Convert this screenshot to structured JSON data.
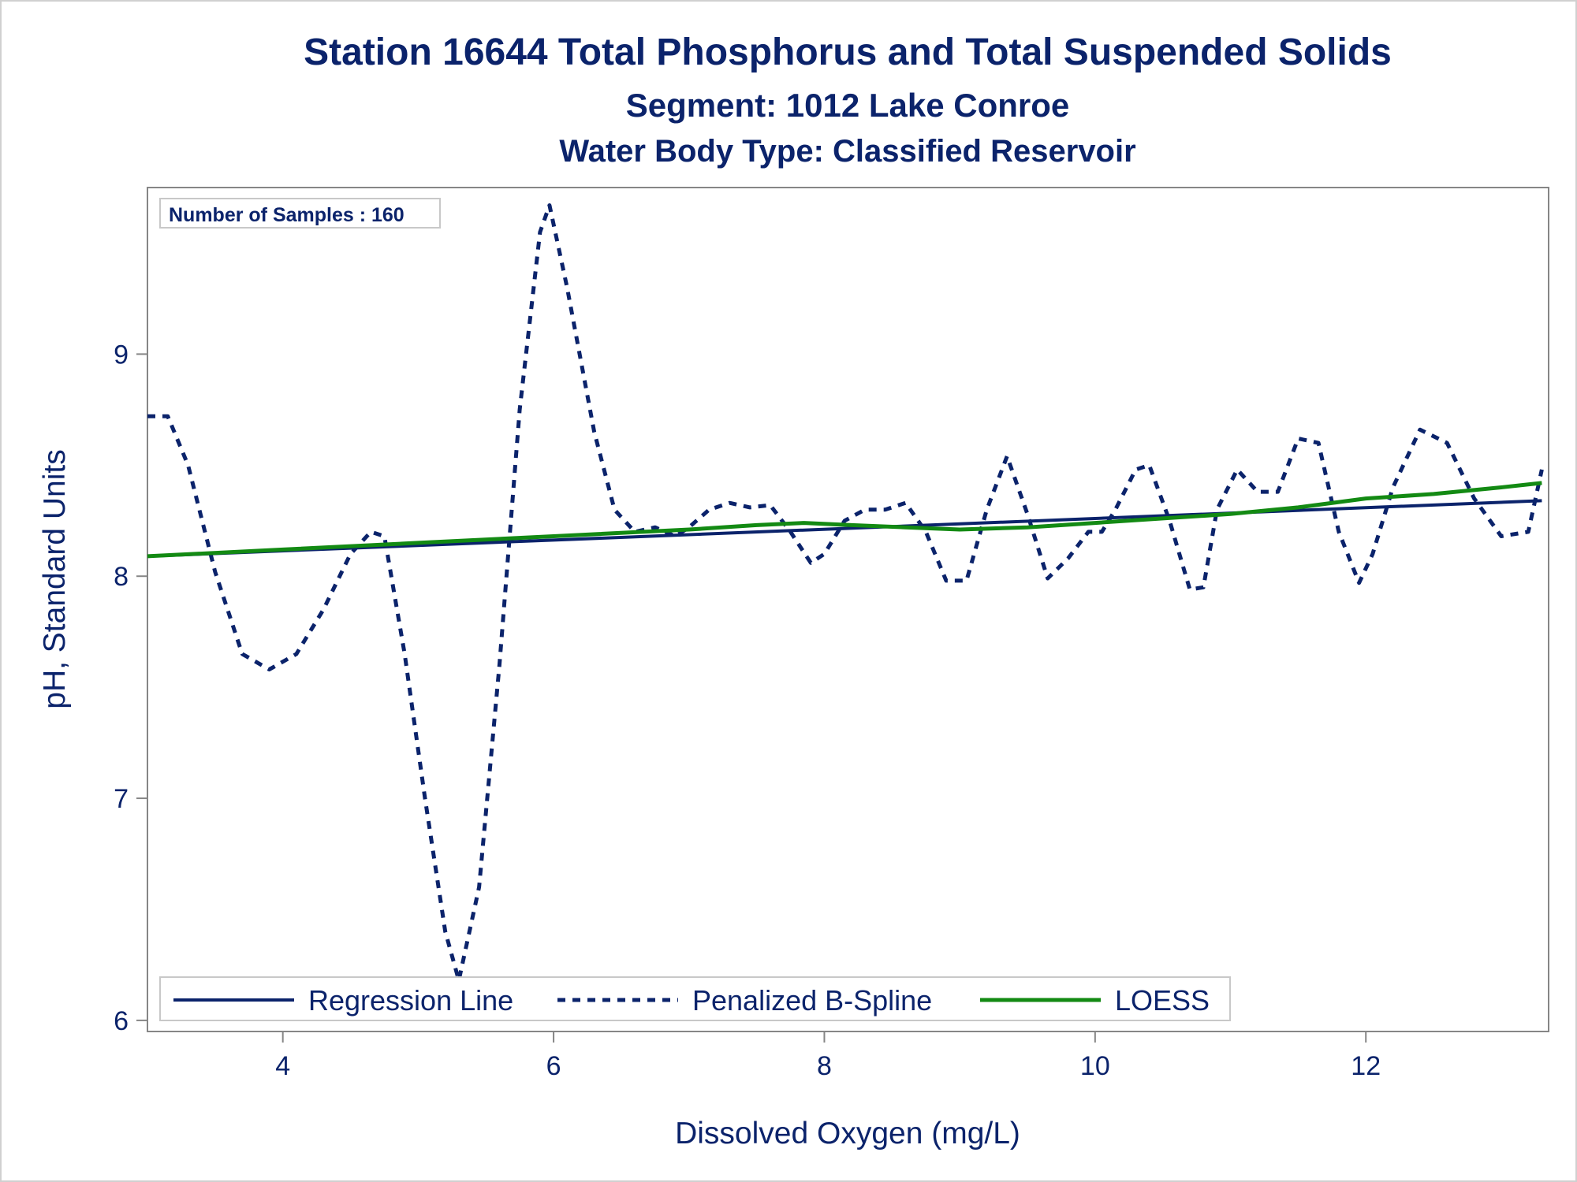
{
  "chart_data": {
    "type": "line",
    "title": "Station 16644  Total Phosphorus and Total Suspended Solids",
    "subtitle": "Segment: 1012  Lake Conroe",
    "subtitle2": "Water Body Type: Classified Reservoir",
    "xlabel": "Dissolved Oxygen (mg/L)",
    "ylabel": "pH, Standard Units",
    "xlim": [
      3.0,
      13.35
    ],
    "ylim": [
      5.95,
      9.75
    ],
    "xticks": [
      4,
      6,
      8,
      10,
      12
    ],
    "yticks": [
      6,
      7,
      8,
      9
    ],
    "annotation": "Number of Samples : 160",
    "legend_position": "bottom-left inside",
    "colors": {
      "text": "#0b236b",
      "regression": "#0b236b",
      "spline": "#0b236b",
      "loess": "#138a13",
      "axis": "#868686"
    },
    "series": [
      {
        "name": "Regression Line",
        "style": "solid",
        "x": [
          3.0,
          13.3
        ],
        "y": [
          8.09,
          8.34
        ]
      },
      {
        "name": "Penalized B-Spline",
        "style": "dashed",
        "x": [
          3.0,
          3.15,
          3.3,
          3.5,
          3.7,
          3.9,
          4.1,
          4.3,
          4.5,
          4.65,
          4.75,
          4.9,
          5.05,
          5.2,
          5.3,
          5.45,
          5.6,
          5.75,
          5.9,
          5.97,
          6.1,
          6.3,
          6.45,
          6.6,
          6.75,
          6.9,
          7.0,
          7.15,
          7.3,
          7.45,
          7.6,
          7.75,
          7.9,
          8.0,
          8.15,
          8.3,
          8.45,
          8.6,
          8.75,
          8.9,
          9.05,
          9.2,
          9.35,
          9.5,
          9.65,
          9.8,
          9.95,
          10.05,
          10.15,
          10.3,
          10.4,
          10.55,
          10.7,
          10.8,
          10.9,
          11.05,
          11.2,
          11.35,
          11.5,
          11.65,
          11.8,
          11.95,
          12.05,
          12.2,
          12.4,
          12.6,
          12.8,
          13.0,
          13.2,
          13.3
        ],
        "y": [
          8.72,
          8.72,
          8.5,
          8.02,
          7.65,
          7.58,
          7.65,
          7.85,
          8.1,
          8.2,
          8.18,
          7.65,
          7.0,
          6.4,
          6.18,
          6.6,
          7.6,
          8.75,
          9.55,
          9.67,
          9.3,
          8.65,
          8.3,
          8.2,
          8.22,
          8.18,
          8.22,
          8.3,
          8.33,
          8.31,
          8.32,
          8.2,
          8.06,
          8.1,
          8.25,
          8.3,
          8.3,
          8.33,
          8.2,
          7.98,
          7.98,
          8.3,
          8.54,
          8.28,
          7.99,
          8.08,
          8.2,
          8.2,
          8.3,
          8.48,
          8.5,
          8.25,
          7.94,
          7.95,
          8.3,
          8.48,
          8.38,
          8.38,
          8.62,
          8.6,
          8.2,
          7.97,
          8.1,
          8.4,
          8.66,
          8.6,
          8.35,
          8.18,
          8.2,
          8.48
        ]
      },
      {
        "name": "LOESS",
        "style": "solid",
        "x": [
          3.0,
          4.0,
          5.0,
          6.0,
          7.0,
          7.5,
          7.85,
          8.2,
          8.6,
          9.0,
          9.5,
          10.0,
          10.5,
          11.0,
          11.5,
          12.0,
          12.5,
          13.0,
          13.3
        ],
        "y": [
          8.09,
          8.12,
          8.15,
          8.18,
          8.21,
          8.23,
          8.24,
          8.23,
          8.22,
          8.21,
          8.22,
          8.24,
          8.26,
          8.28,
          8.31,
          8.35,
          8.37,
          8.4,
          8.42
        ]
      }
    ]
  }
}
